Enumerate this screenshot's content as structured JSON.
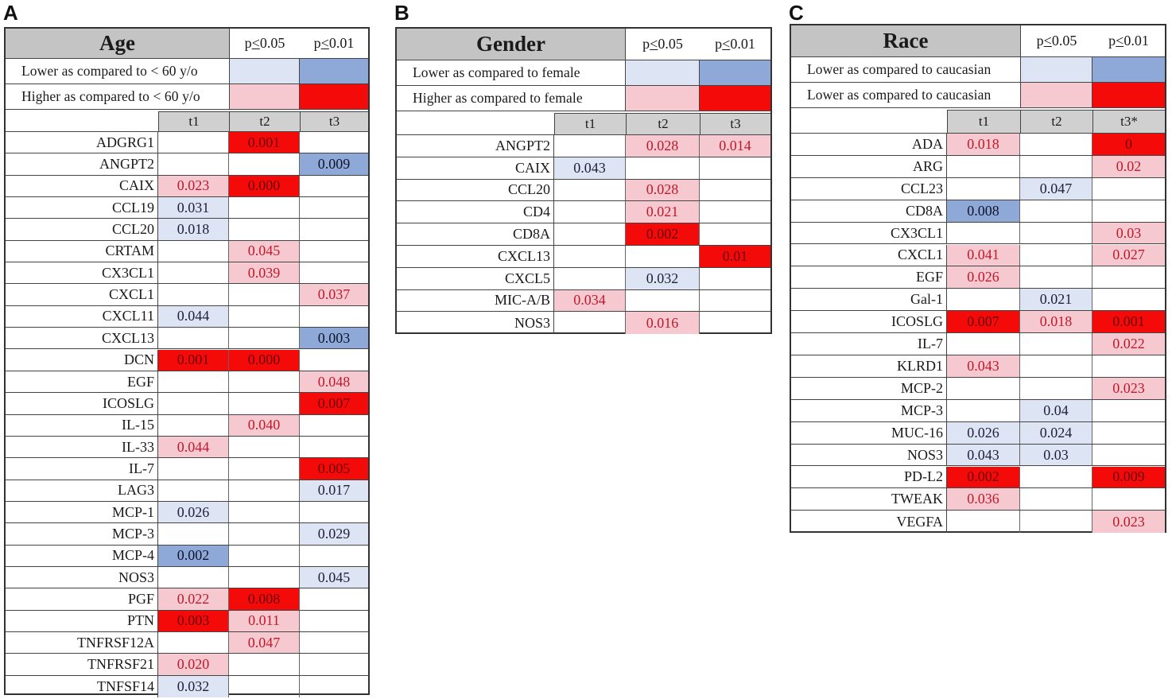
{
  "colors": {
    "lower_p05": "#dde4f3",
    "lower_p01": "#8ea9d8",
    "higher_p05": "#f6c8cf",
    "higher_p01": "#f50a0a"
  },
  "header_p05": {
    "pre": "p",
    "rel": "<",
    "post": "0.05"
  },
  "header_p01": {
    "pre": "p",
    "rel": "<",
    "post": "0.01"
  },
  "chart_data": [
    {
      "type": "table",
      "panel": "A",
      "title": "Age",
      "legend": [
        {
          "label": "Lower as compared to < 60 y/o",
          "direction": "lower"
        },
        {
          "label": "Higher as compared to < 60 y/o",
          "direction": "higher"
        }
      ],
      "columns": [
        "t1",
        "t2",
        "t3"
      ],
      "rows": [
        {
          "gene": "ADGRG1",
          "cells": [
            null,
            {
              "v": "0.001",
              "c": "high-01"
            },
            null
          ]
        },
        {
          "gene": "ANGPT2",
          "cells": [
            null,
            null,
            {
              "v": "0.009",
              "c": "low-01"
            }
          ]
        },
        {
          "gene": "CAIX",
          "cells": [
            {
              "v": "0.023",
              "c": "high-05"
            },
            {
              "v": "0.000",
              "c": "high-01"
            },
            null
          ]
        },
        {
          "gene": "CCL19",
          "cells": [
            {
              "v": "0.031",
              "c": "low-05"
            },
            null,
            null
          ]
        },
        {
          "gene": "CCL20",
          "cells": [
            {
              "v": "0.018",
              "c": "low-05"
            },
            null,
            null
          ]
        },
        {
          "gene": "CRTAM",
          "cells": [
            null,
            {
              "v": "0.045",
              "c": "high-05"
            },
            null
          ]
        },
        {
          "gene": "CX3CL1",
          "cells": [
            null,
            {
              "v": "0.039",
              "c": "high-05"
            },
            null
          ]
        },
        {
          "gene": "CXCL1",
          "cells": [
            null,
            null,
            {
              "v": "0.037",
              "c": "high-05"
            }
          ]
        },
        {
          "gene": "CXCL11",
          "cells": [
            {
              "v": "0.044",
              "c": "low-05"
            },
            null,
            null
          ]
        },
        {
          "gene": "CXCL13",
          "cells": [
            null,
            null,
            {
              "v": "0.003",
              "c": "low-01"
            }
          ]
        },
        {
          "gene": "DCN",
          "cells": [
            {
              "v": "0.001",
              "c": "high-01"
            },
            {
              "v": "0.000",
              "c": "high-01"
            },
            null
          ]
        },
        {
          "gene": "EGF",
          "cells": [
            null,
            null,
            {
              "v": "0.048",
              "c": "high-05"
            }
          ]
        },
        {
          "gene": "ICOSLG",
          "cells": [
            null,
            null,
            {
              "v": "0.007",
              "c": "high-01"
            }
          ]
        },
        {
          "gene": "IL-15",
          "cells": [
            null,
            {
              "v": "0.040",
              "c": "high-05"
            },
            null
          ]
        },
        {
          "gene": "IL-33",
          "cells": [
            {
              "v": "0.044",
              "c": "high-05"
            },
            null,
            null
          ]
        },
        {
          "gene": "IL-7",
          "cells": [
            null,
            null,
            {
              "v": "0.005",
              "c": "high-01"
            }
          ]
        },
        {
          "gene": "LAG3",
          "cells": [
            null,
            null,
            {
              "v": "0.017",
              "c": "low-05"
            }
          ]
        },
        {
          "gene": "MCP-1",
          "cells": [
            {
              "v": "0.026",
              "c": "low-05"
            },
            null,
            null
          ]
        },
        {
          "gene": "MCP-3",
          "cells": [
            null,
            null,
            {
              "v": "0.029",
              "c": "low-05"
            }
          ]
        },
        {
          "gene": "MCP-4",
          "cells": [
            {
              "v": "0.002",
              "c": "low-01"
            },
            null,
            null
          ]
        },
        {
          "gene": "NOS3",
          "cells": [
            null,
            null,
            {
              "v": "0.045",
              "c": "low-05"
            }
          ]
        },
        {
          "gene": "PGF",
          "cells": [
            {
              "v": "0.022",
              "c": "high-05"
            },
            {
              "v": "0.008",
              "c": "high-01"
            },
            null
          ]
        },
        {
          "gene": "PTN",
          "cells": [
            {
              "v": "0.003",
              "c": "high-01"
            },
            {
              "v": "0.011",
              "c": "high-05"
            },
            null
          ]
        },
        {
          "gene": "TNFRSF12A",
          "cells": [
            null,
            {
              "v": "0.047",
              "c": "high-05"
            },
            null
          ]
        },
        {
          "gene": "TNFRSF21",
          "cells": [
            {
              "v": "0.020",
              "c": "high-05"
            },
            null,
            null
          ]
        },
        {
          "gene": "TNFSF14",
          "cells": [
            {
              "v": "0.032",
              "c": "low-05"
            },
            null,
            null
          ]
        }
      ]
    },
    {
      "type": "table",
      "panel": "B",
      "title": "Gender",
      "legend": [
        {
          "label": "Lower as compared to female",
          "direction": "lower"
        },
        {
          "label": "Higher as compared to female",
          "direction": "higher"
        }
      ],
      "columns": [
        "t1",
        "t2",
        "t3"
      ],
      "rows": [
        {
          "gene": "ANGPT2",
          "cells": [
            null,
            {
              "v": "0.028",
              "c": "high-05"
            },
            {
              "v": "0.014",
              "c": "high-05"
            }
          ]
        },
        {
          "gene": "CAIX",
          "cells": [
            {
              "v": "0.043",
              "c": "low-05"
            },
            null,
            null
          ]
        },
        {
          "gene": "CCL20",
          "cells": [
            null,
            {
              "v": "0.028",
              "c": "high-05"
            },
            null
          ]
        },
        {
          "gene": "CD4",
          "cells": [
            null,
            {
              "v": "0.021",
              "c": "high-05"
            },
            null
          ]
        },
        {
          "gene": "CD8A",
          "cells": [
            null,
            {
              "v": "0.002",
              "c": "high-01"
            },
            null
          ]
        },
        {
          "gene": "CXCL13",
          "cells": [
            null,
            null,
            {
              "v": "0.01",
              "c": "high-01"
            }
          ]
        },
        {
          "gene": "CXCL5",
          "cells": [
            null,
            {
              "v": "0.032",
              "c": "low-05"
            },
            null
          ]
        },
        {
          "gene": "MIC-A/B",
          "cells": [
            {
              "v": "0.034",
              "c": "high-05"
            },
            null,
            null
          ]
        },
        {
          "gene": "NOS3",
          "cells": [
            null,
            {
              "v": "0.016",
              "c": "high-05"
            },
            null
          ]
        }
      ]
    },
    {
      "type": "table",
      "panel": "C",
      "title": "Race",
      "legend": [
        {
          "label": "Lower as compared to caucasian",
          "direction": "lower"
        },
        {
          "label": "Lower as compared to caucasian",
          "direction": "higher"
        }
      ],
      "columns": [
        "t1",
        "t2",
        "t3*"
      ],
      "rows": [
        {
          "gene": "ADA",
          "cells": [
            {
              "v": "0.018",
              "c": "high-05"
            },
            null,
            {
              "v": "0",
              "c": "high-01"
            }
          ]
        },
        {
          "gene": "ARG",
          "cells": [
            null,
            null,
            {
              "v": "0.02",
              "c": "high-05"
            }
          ]
        },
        {
          "gene": "CCL23",
          "cells": [
            null,
            {
              "v": "0.047",
              "c": "low-05"
            },
            null
          ]
        },
        {
          "gene": "CD8A",
          "cells": [
            {
              "v": "0.008",
              "c": "low-01"
            },
            null,
            null
          ]
        },
        {
          "gene": "CX3CL1",
          "cells": [
            null,
            null,
            {
              "v": "0.03",
              "c": "high-05"
            }
          ]
        },
        {
          "gene": "CXCL1",
          "cells": [
            {
              "v": "0.041",
              "c": "high-05"
            },
            null,
            {
              "v": "0.027",
              "c": "high-05"
            }
          ]
        },
        {
          "gene": "EGF",
          "cells": [
            {
              "v": "0.026",
              "c": "high-05"
            },
            null,
            null
          ]
        },
        {
          "gene": "Gal-1",
          "cells": [
            null,
            {
              "v": "0.021",
              "c": "low-05"
            },
            null
          ]
        },
        {
          "gene": "ICOSLG",
          "cells": [
            {
              "v": "0.007",
              "c": "high-01"
            },
            {
              "v": "0.018",
              "c": "high-05"
            },
            {
              "v": "0.001",
              "c": "high-01"
            }
          ]
        },
        {
          "gene": "IL-7",
          "cells": [
            null,
            null,
            {
              "v": "0.022",
              "c": "high-05"
            }
          ]
        },
        {
          "gene": "KLRD1",
          "cells": [
            {
              "v": "0.043",
              "c": "high-05"
            },
            null,
            null
          ]
        },
        {
          "gene": "MCP-2",
          "cells": [
            null,
            null,
            {
              "v": "0.023",
              "c": "high-05"
            }
          ]
        },
        {
          "gene": "MCP-3",
          "cells": [
            null,
            {
              "v": "0.04",
              "c": "low-05"
            },
            null
          ]
        },
        {
          "gene": "MUC-16",
          "cells": [
            {
              "v": "0.026",
              "c": "low-05"
            },
            {
              "v": "0.024",
              "c": "low-05"
            },
            null
          ]
        },
        {
          "gene": "NOS3",
          "cells": [
            {
              "v": "0.043",
              "c": "low-05"
            },
            {
              "v": "0.03",
              "c": "low-05"
            },
            null
          ]
        },
        {
          "gene": "PD-L2",
          "cells": [
            {
              "v": "0.002",
              "c": "high-01"
            },
            null,
            {
              "v": "0.009",
              "c": "high-01"
            }
          ]
        },
        {
          "gene": "TWEAK",
          "cells": [
            {
              "v": "0.036",
              "c": "high-05"
            },
            null,
            null
          ]
        },
        {
          "gene": "VEGFA",
          "cells": [
            null,
            null,
            {
              "v": "0.023",
              "c": "high-05"
            }
          ]
        }
      ]
    }
  ]
}
